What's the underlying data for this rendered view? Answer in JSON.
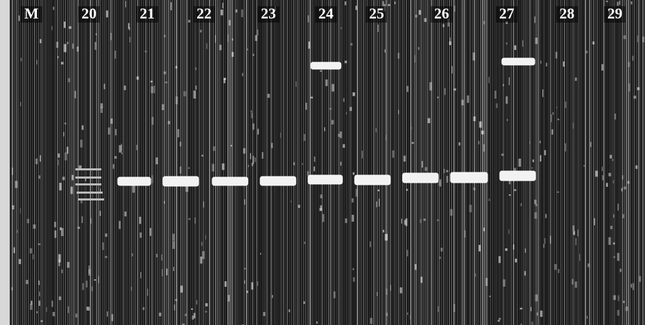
{
  "lanes": {
    "labels": [
      "M",
      "20",
      "21",
      "22",
      "23",
      "24",
      "25",
      "26",
      "27",
      "28",
      "29"
    ]
  }
}
